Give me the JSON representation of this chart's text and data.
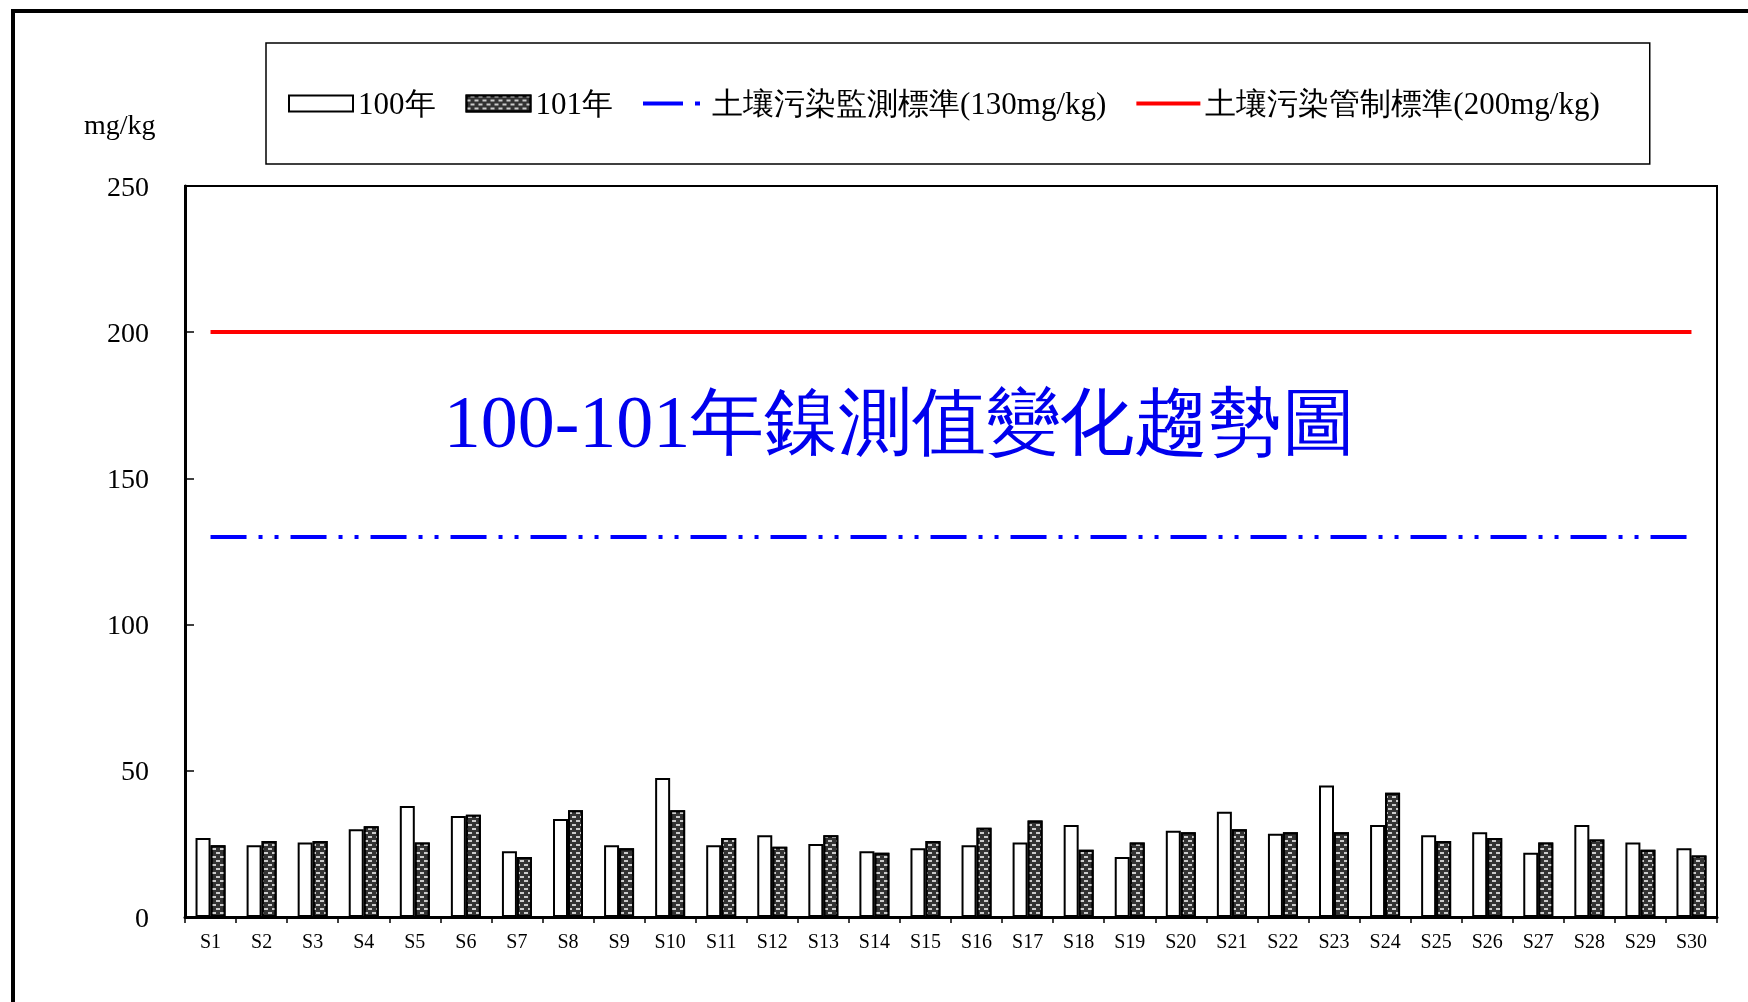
{
  "chart_data": {
    "type": "bar",
    "title": "100-101年鎳測值變化趨勢圖",
    "ylabel": "mg/kg",
    "categories": [
      "S1",
      "S2",
      "S3",
      "S4",
      "S5",
      "S6",
      "S7",
      "S8",
      "S9",
      "S10",
      "S11",
      "S12",
      "S13",
      "S14",
      "S15",
      "S16",
      "S17",
      "S18",
      "S19",
      "S20",
      "S21",
      "S22",
      "S23",
      "S24",
      "S25",
      "S26",
      "S27",
      "S28",
      "S29",
      "S30"
    ],
    "series": [
      {
        "name": "100年",
        "color": "#ffffff",
        "values": [
          27,
          24.5,
          25.5,
          30,
          38,
          34.5,
          22.5,
          33.5,
          24.5,
          47.5,
          24.5,
          28,
          25,
          22.5,
          23.5,
          24.5,
          25.5,
          31.5,
          20.5,
          29.5,
          36,
          28.5,
          45,
          31.5,
          28,
          29,
          22,
          31.5,
          25.5,
          23.5
        ]
      },
      {
        "name": "101年",
        "color": "#333333",
        "values": [
          24.5,
          26,
          26,
          31,
          25.5,
          35,
          20.5,
          36.5,
          23.5,
          36.5,
          27,
          24,
          28,
          22,
          26,
          30.5,
          33,
          23,
          25.5,
          29,
          30,
          29,
          29,
          42.5,
          26,
          27,
          25.5,
          26.5,
          23,
          21
        ]
      }
    ],
    "ylim": [
      0,
      250
    ],
    "yticks": [
      0,
      50,
      100,
      150,
      200,
      250
    ],
    "ref_lines": [
      {
        "axis": "y",
        "value": 130,
        "label": "土壤污染監測標準(130mg/kg)",
        "color": "#0000ff",
        "line_style": "dashed"
      },
      {
        "axis": "y",
        "value": 200,
        "label": "土壤污染管制標準(200mg/kg)",
        "color": "#ff0000",
        "line_style": "solid"
      }
    ],
    "grid": false,
    "legend": "top"
  }
}
